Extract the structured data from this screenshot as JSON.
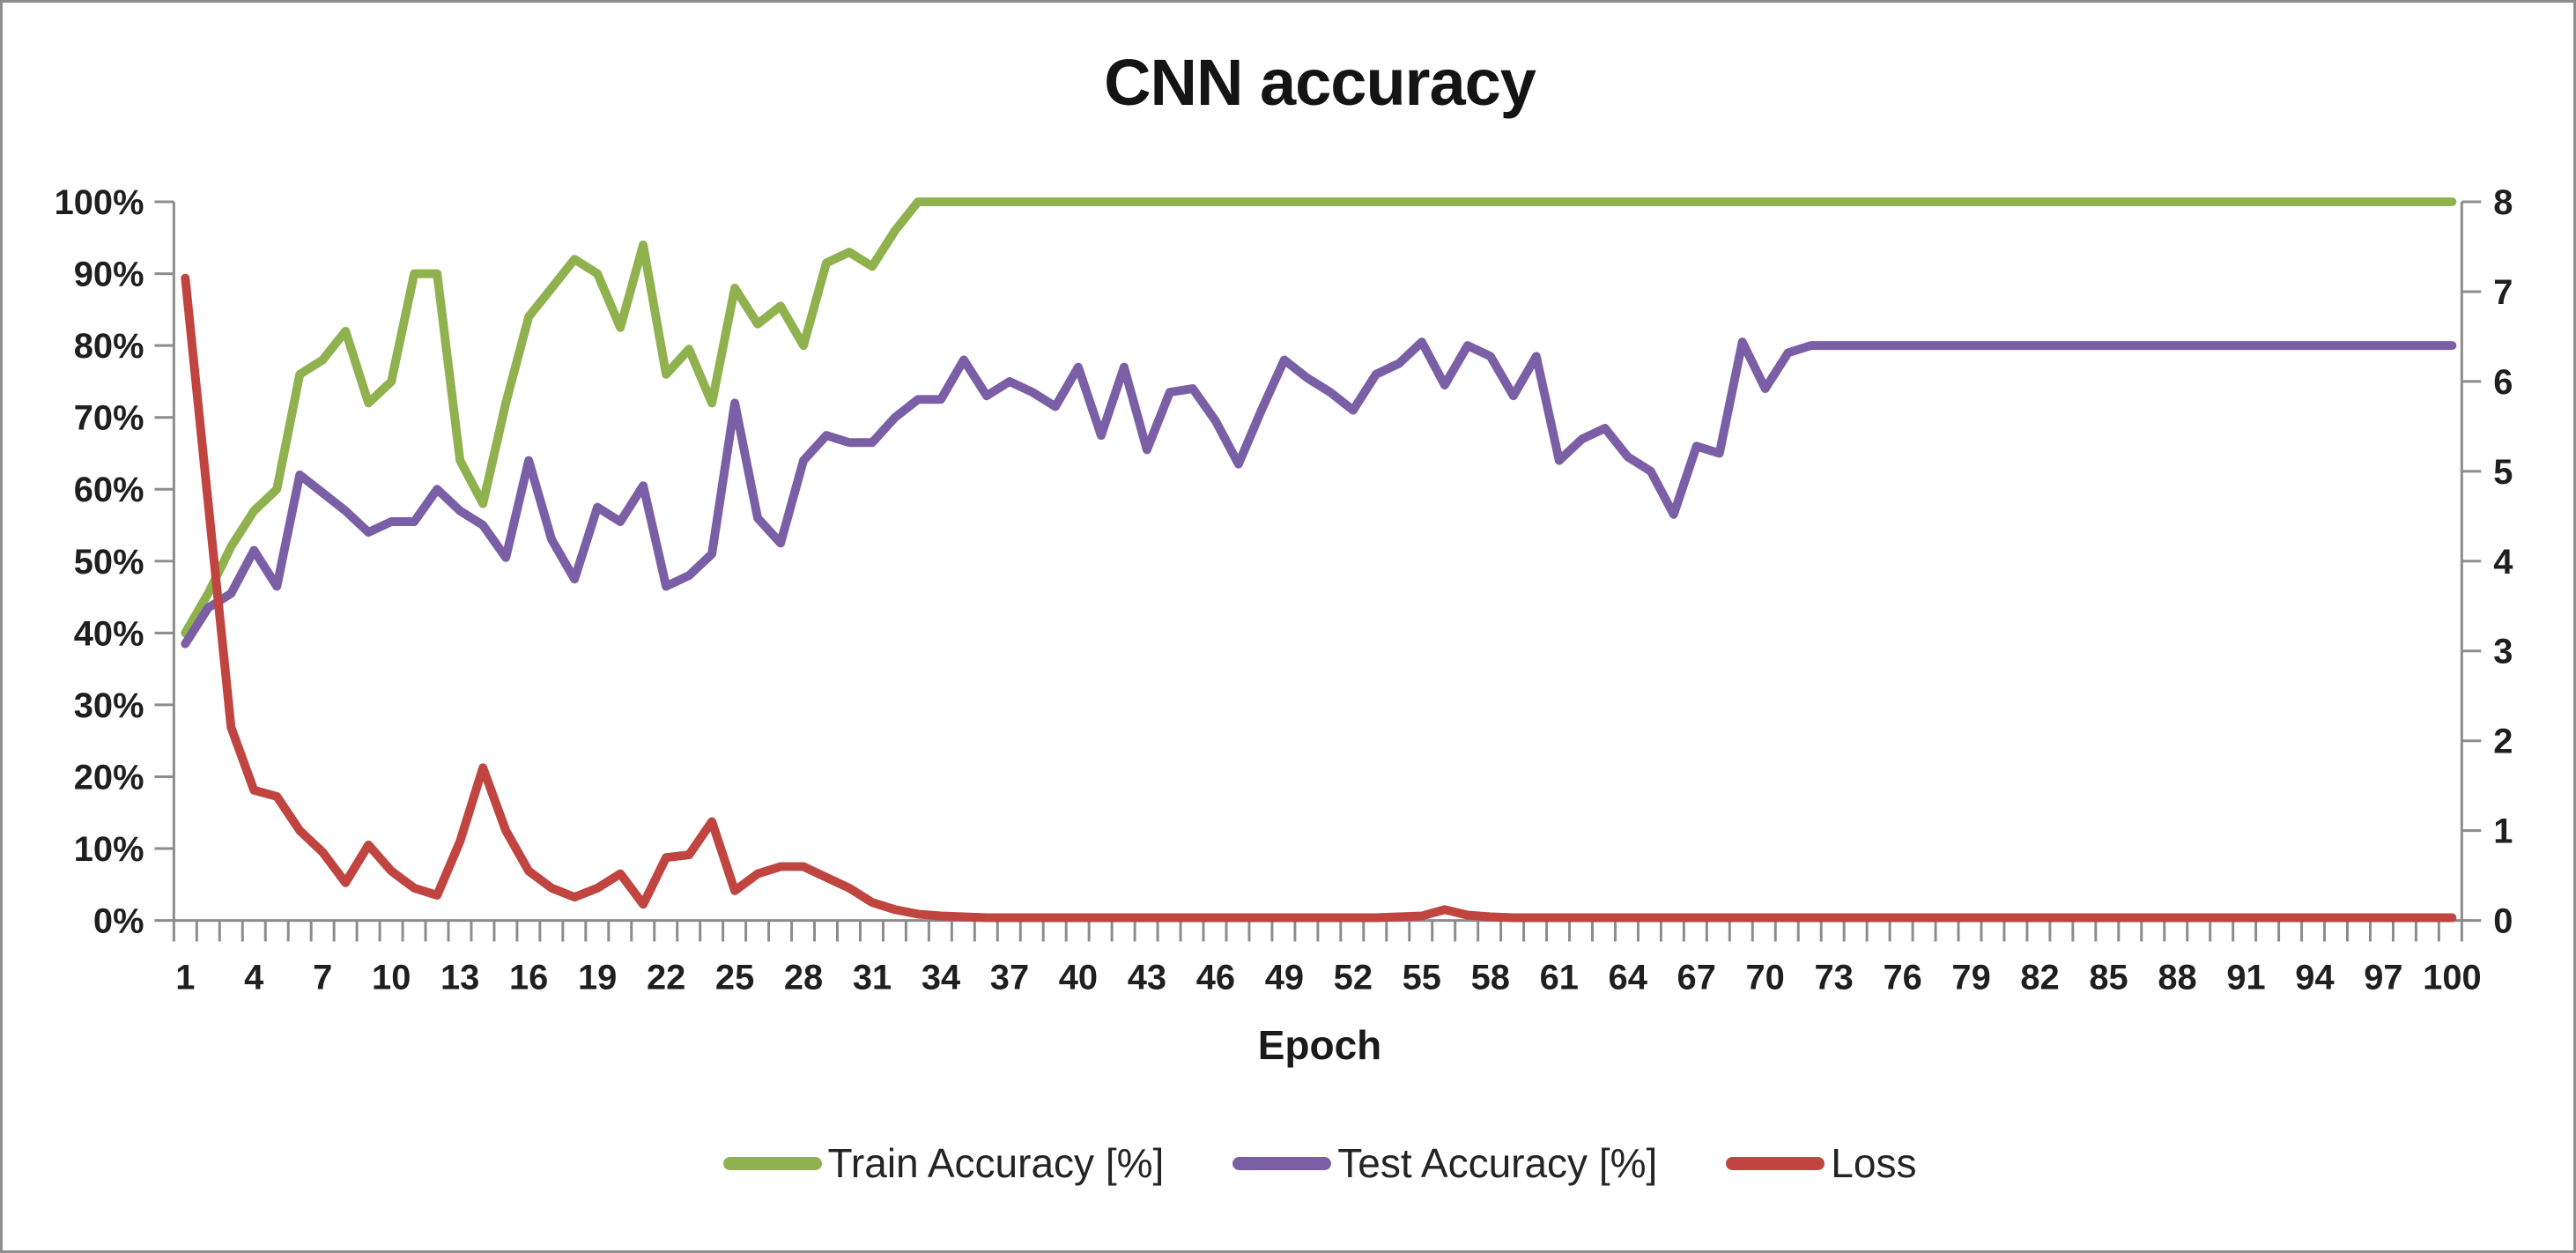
{
  "title": "CNN accuracy",
  "x_axis": {
    "label": "Epoch",
    "tick_labels": [
      1,
      4,
      7,
      10,
      13,
      16,
      19,
      22,
      25,
      28,
      31,
      34,
      37,
      40,
      43,
      46,
      49,
      52,
      55,
      58,
      61,
      64,
      67,
      70,
      73,
      76,
      79,
      82,
      85,
      88,
      91,
      94,
      97,
      100
    ]
  },
  "left_axis": {
    "tick_labels": [
      "100%",
      "90%",
      "80%",
      "70%",
      "60%",
      "50%",
      "40%",
      "30%",
      "20%",
      "10%",
      "0%"
    ],
    "min": 0,
    "max": 100,
    "step": 10
  },
  "right_axis": {
    "tick_labels": [
      8,
      7,
      6,
      5,
      4,
      3,
      2,
      1,
      0
    ],
    "min": 0,
    "max": 8,
    "step": 1
  },
  "legend": [
    {
      "label": "Train Accuracy [%]",
      "color": "#8FB14E"
    },
    {
      "label": "Test Accuracy [%]",
      "color": "#7B5FA6"
    },
    {
      "label": "Loss",
      "color": "#C04440"
    }
  ],
  "colors": {
    "axis": "#8C8C8C",
    "background": "#FFFFFF",
    "border": "#8E8E8E",
    "train": "#8FB14E",
    "test": "#7B5FA6",
    "loss": "#C04440"
  },
  "chart_data": {
    "type": "line",
    "title": "CNN accuracy",
    "xlabel": "Epoch",
    "grid": false,
    "legend_position": "bottom",
    "left_ylim": [
      0,
      100
    ],
    "right_ylim": [
      0,
      8
    ],
    "x": [
      1,
      2,
      3,
      4,
      5,
      6,
      7,
      8,
      9,
      10,
      11,
      12,
      13,
      14,
      15,
      16,
      17,
      18,
      19,
      20,
      21,
      22,
      23,
      24,
      25,
      26,
      27,
      28,
      29,
      30,
      31,
      32,
      33,
      34,
      35,
      36,
      37,
      38,
      39,
      40,
      41,
      42,
      43,
      44,
      45,
      46,
      47,
      48,
      49,
      50,
      51,
      52,
      53,
      54,
      55,
      56,
      57,
      58,
      59,
      60,
      61,
      62,
      63,
      64,
      65,
      66,
      67,
      68,
      69,
      70,
      71,
      72,
      73,
      74,
      75,
      76,
      77,
      78,
      79,
      80,
      81,
      82,
      83,
      84,
      85,
      86,
      87,
      88,
      89,
      90,
      91,
      92,
      93,
      94,
      95,
      96,
      97,
      98,
      99,
      100
    ],
    "series": [
      {
        "name": "Train Accuracy [%]",
        "axis": "left",
        "unit": "%",
        "color": "#8FB14E",
        "values": [
          40,
          45.5,
          52,
          57,
          60,
          76,
          78,
          82,
          72,
          75,
          90,
          90,
          64,
          58,
          72,
          84,
          88,
          92,
          90,
          82.5,
          94,
          76,
          79.5,
          72,
          88,
          83,
          85.5,
          80,
          91.5,
          93,
          91,
          96,
          100,
          100,
          100,
          100,
          100,
          100,
          100,
          100,
          100,
          100,
          100,
          100,
          100,
          100,
          100,
          100,
          100,
          100,
          100,
          100,
          100,
          100,
          100,
          100,
          100,
          100,
          100,
          100,
          100,
          100,
          100,
          100,
          100,
          100,
          100,
          100,
          100,
          100,
          100,
          100,
          100,
          100,
          100,
          100,
          100,
          100,
          100,
          100,
          100,
          100,
          100,
          100,
          100,
          100,
          100,
          100,
          100,
          100,
          100,
          100,
          100,
          100,
          100,
          100,
          100,
          100,
          100,
          100
        ]
      },
      {
        "name": "Test Accuracy [%]",
        "axis": "left",
        "unit": "%",
        "color": "#7B5FA6",
        "values": [
          38.5,
          43.5,
          45.5,
          51.5,
          46.5,
          62,
          59.5,
          57,
          54,
          55.5,
          55.5,
          60,
          57,
          55,
          50.5,
          64,
          53,
          47.5,
          57.5,
          55.5,
          60.5,
          46.5,
          48,
          51,
          72,
          56,
          52.5,
          64,
          67.5,
          66.5,
          66.5,
          70,
          72.5,
          72.5,
          78,
          73,
          75,
          73.5,
          71.5,
          77,
          67.5,
          77,
          65.5,
          73.5,
          74,
          69.5,
          63.5,
          71,
          78,
          75.5,
          73.5,
          71,
          76,
          77.5,
          80.5,
          74.5,
          80,
          78.5,
          73,
          78.5,
          64,
          67,
          68.5,
          64.5,
          62.5,
          56.5,
          66,
          65,
          80.5,
          74,
          79,
          80,
          80,
          80,
          80,
          80,
          80,
          80,
          80,
          80,
          80,
          80,
          80,
          80,
          80,
          80,
          80,
          80,
          80,
          80,
          80,
          80,
          80,
          80,
          80,
          80,
          80,
          80,
          80,
          80
        ]
      },
      {
        "name": "Loss",
        "axis": "right",
        "unit": "",
        "color": "#C04440",
        "values": [
          7.15,
          4.65,
          2.15,
          1.45,
          1.38,
          1.0,
          0.76,
          0.42,
          0.84,
          0.55,
          0.36,
          0.28,
          0.88,
          1.7,
          1.0,
          0.55,
          0.36,
          0.26,
          0.36,
          0.52,
          0.18,
          0.7,
          0.73,
          1.1,
          0.33,
          0.52,
          0.6,
          0.6,
          0.48,
          0.36,
          0.2,
          0.12,
          0.07,
          0.05,
          0.04,
          0.03,
          0.03,
          0.03,
          0.03,
          0.03,
          0.03,
          0.03,
          0.03,
          0.03,
          0.03,
          0.03,
          0.03,
          0.03,
          0.03,
          0.03,
          0.03,
          0.03,
          0.03,
          0.04,
          0.05,
          0.12,
          0.06,
          0.04,
          0.03,
          0.03,
          0.03,
          0.03,
          0.03,
          0.03,
          0.03,
          0.03,
          0.03,
          0.03,
          0.03,
          0.03,
          0.03,
          0.03,
          0.03,
          0.03,
          0.03,
          0.03,
          0.03,
          0.03,
          0.03,
          0.03,
          0.03,
          0.03,
          0.03,
          0.03,
          0.03,
          0.03,
          0.03,
          0.03,
          0.03,
          0.03,
          0.03,
          0.03,
          0.03,
          0.03,
          0.03,
          0.03,
          0.03,
          0.03,
          0.03,
          0.03
        ]
      }
    ]
  }
}
